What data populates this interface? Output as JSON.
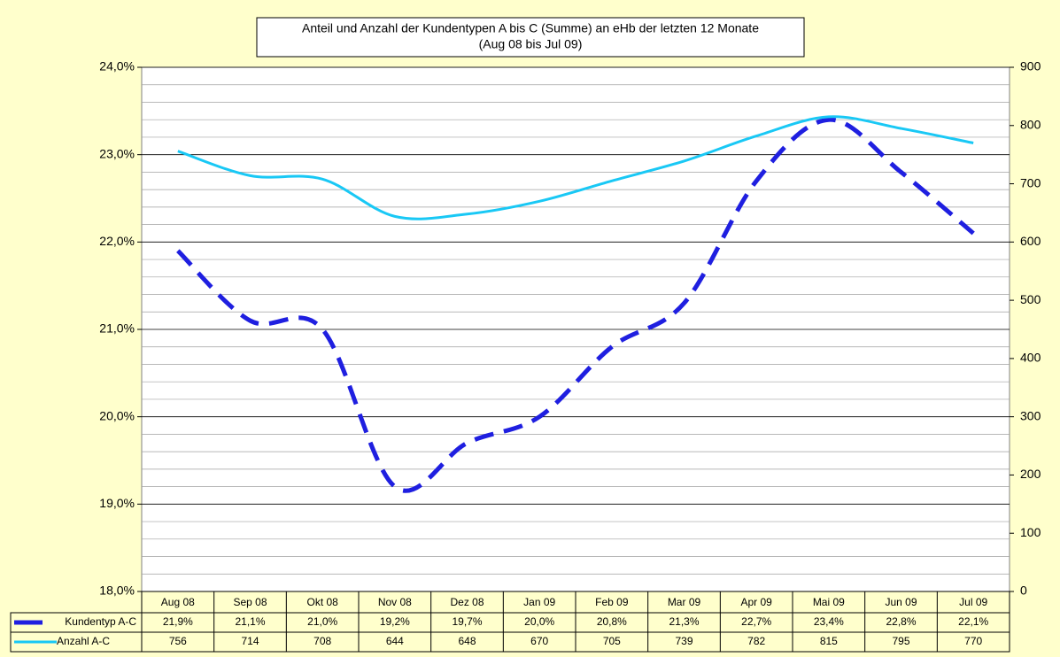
{
  "chart_data": {
    "type": "line",
    "title": "Anteil und Anzahl der Kundentypen A bis C (Summe) an eHb der letzten 12 Monate",
    "subtitle": "(Aug 08 bis Jul 09)",
    "categories": [
      "Aug 08",
      "Sep 08",
      "Okt 08",
      "Nov 08",
      "Dez 08",
      "Jan 09",
      "Feb 09",
      "Mar 09",
      "Apr 09",
      "Mai 09",
      "Jun 09",
      "Jul 09"
    ],
    "series": [
      {
        "name": "Kundentyp A-C",
        "color": "#1f1fe0",
        "dashed": true,
        "values": [
          21.9,
          21.1,
          21.0,
          19.2,
          19.7,
          20.0,
          20.8,
          21.3,
          22.7,
          23.4,
          22.8,
          22.1
        ],
        "value_labels": [
          "21,9%",
          "21,1%",
          "21,0%",
          "19,2%",
          "19,7%",
          "20,0%",
          "20,8%",
          "21,3%",
          "22,7%",
          "23,4%",
          "22,8%",
          "22,1%"
        ]
      },
      {
        "name": "Anzahl A-C",
        "color": "#19c8f5",
        "axis": "y2",
        "values": [
          756,
          714,
          708,
          644,
          648,
          670,
          705,
          739,
          782,
          815,
          795,
          770
        ]
      }
    ],
    "ylim": [
      18,
      24
    ],
    "yticks": [
      {
        "value": 18,
        "label": "18,0%"
      },
      {
        "value": 19,
        "label": "19,0%"
      },
      {
        "value": 20,
        "label": "20,0%"
      },
      {
        "value": 21,
        "label": "21,0%"
      },
      {
        "value": 22,
        "label": "22,0%"
      },
      {
        "value": 23,
        "label": "23,0%"
      },
      {
        "value": 24,
        "label": "24,0%"
      }
    ],
    "y2lim": [
      0,
      900
    ],
    "y2ticks": [
      0,
      100,
      200,
      300,
      400,
      500,
      600,
      700,
      800,
      900
    ],
    "grid": true,
    "smooth": true
  }
}
